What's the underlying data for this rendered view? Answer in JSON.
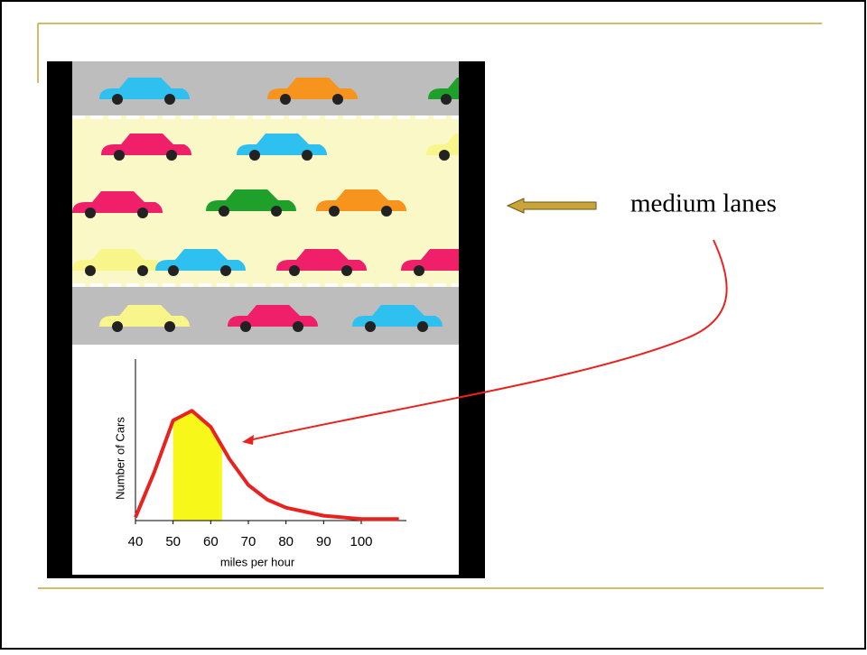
{
  "slide": {
    "callout": "medium lanes"
  },
  "chart_data": {
    "type": "line",
    "x_label": "miles per hour",
    "y_label": "Number of Cars",
    "x": [
      40,
      45,
      50,
      55,
      60,
      65,
      70,
      75,
      80,
      90,
      100,
      110
    ],
    "values": [
      2,
      30,
      62,
      68,
      58,
      38,
      22,
      13,
      8,
      3,
      1,
      1
    ],
    "color": "#e8231f",
    "highlight": [
      50,
      63
    ],
    "highlight_color": "#f7f719",
    "xlim": [
      40,
      112
    ],
    "ylim": [
      0,
      100
    ],
    "xticks": [
      40,
      50,
      60,
      70,
      80,
      90,
      100
    ]
  }
}
